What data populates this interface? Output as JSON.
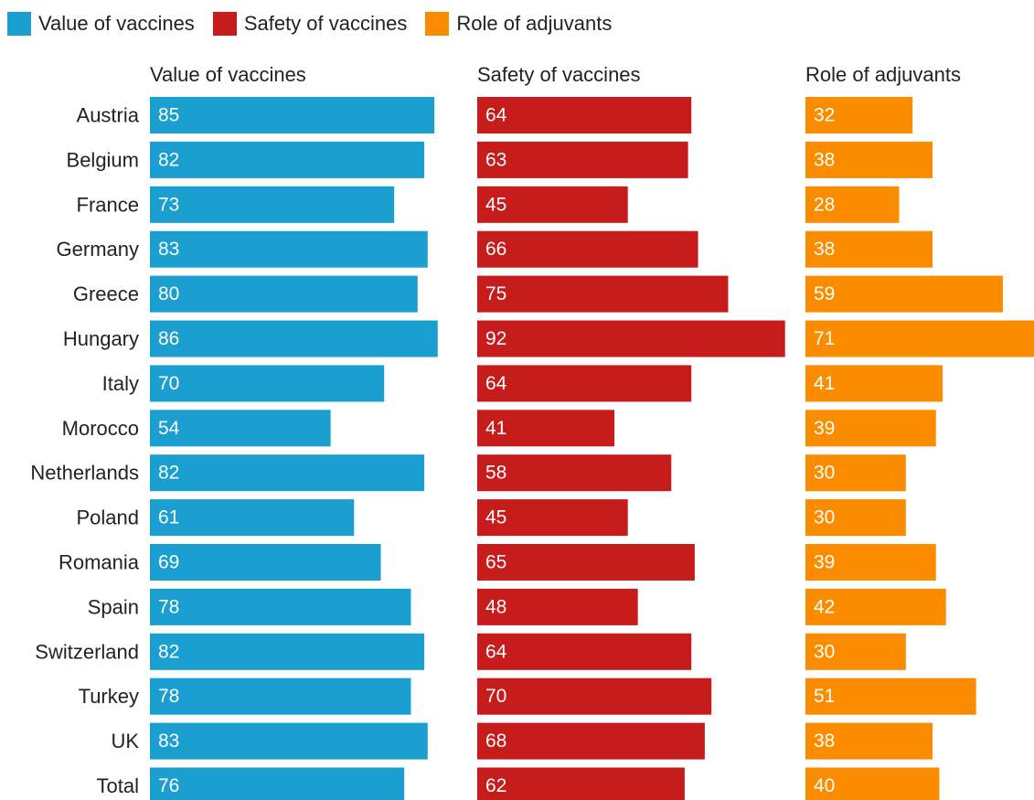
{
  "legend": [
    {
      "label": "Value of vaccines",
      "color": "#1a9fd0"
    },
    {
      "label": "Safety of vaccines",
      "color": "#c71c1c"
    },
    {
      "label": "Role of adjuvants",
      "color": "#fb8c00"
    }
  ],
  "chart_data": {
    "type": "bar",
    "orientation": "horizontal",
    "layout": "small-multiples",
    "legend_position": "top-left",
    "grid": false,
    "categories": [
      "Austria",
      "Belgium",
      "France",
      "Germany",
      "Greece",
      "Hungary",
      "Italy",
      "Morocco",
      "Netherlands",
      "Poland",
      "Romania",
      "Spain",
      "Switzerland",
      "Turkey",
      "UK",
      "Total"
    ],
    "series": [
      {
        "name": "Value of vaccines",
        "color": "#1a9fd0",
        "values": [
          85,
          82,
          73,
          83,
          80,
          86,
          70,
          54,
          82,
          61,
          69,
          78,
          82,
          78,
          83,
          76
        ]
      },
      {
        "name": "Safety of vaccines",
        "color": "#c71c1c",
        "values": [
          64,
          63,
          45,
          66,
          75,
          92,
          64,
          41,
          58,
          45,
          65,
          48,
          64,
          70,
          68,
          62
        ]
      },
      {
        "name": "Role of adjuvants",
        "color": "#fb8c00",
        "values": [
          32,
          38,
          28,
          38,
          59,
          71,
          41,
          39,
          30,
          30,
          39,
          42,
          30,
          51,
          38,
          40
        ]
      }
    ]
  }
}
